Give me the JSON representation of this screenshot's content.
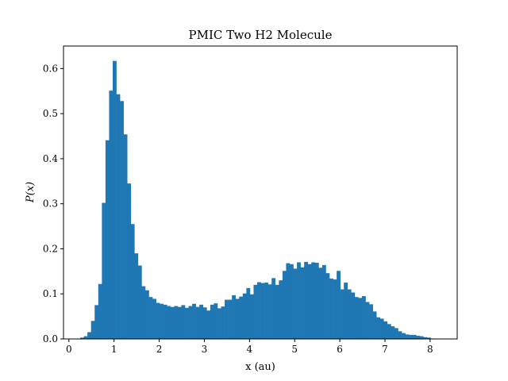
{
  "chart_data": {
    "type": "bar",
    "title": "PMIC Two H2 Molecule",
    "xlabel": "x (au)",
    "ylabel": "P(x)",
    "xlim": [
      -0.12,
      8.6
    ],
    "ylim": [
      0,
      0.65
    ],
    "xticks": [
      0,
      1,
      2,
      3,
      4,
      5,
      6,
      7,
      8
    ],
    "yticks": [
      0.0,
      0.1,
      0.2,
      0.3,
      0.4,
      0.5,
      0.6
    ],
    "ytick_labels": [
      "0.0",
      "0.1",
      "0.2",
      "0.3",
      "0.4",
      "0.5",
      "0.6"
    ],
    "bar_color": "#1f77b4",
    "grid": false,
    "legend": "none",
    "bin_start": 0.25,
    "bin_width": 0.08,
    "values": [
      0.003,
      0.006,
      0.015,
      0.04,
      0.075,
      0.122,
      0.302,
      0.441,
      0.551,
      0.617,
      0.543,
      0.528,
      0.454,
      0.345,
      0.255,
      0.19,
      0.163,
      0.117,
      0.108,
      0.093,
      0.089,
      0.08,
      0.078,
      0.076,
      0.073,
      0.071,
      0.073,
      0.071,
      0.075,
      0.069,
      0.073,
      0.078,
      0.071,
      0.076,
      0.07,
      0.063,
      0.076,
      0.079,
      0.068,
      0.072,
      0.087,
      0.087,
      0.097,
      0.089,
      0.094,
      0.101,
      0.113,
      0.099,
      0.12,
      0.126,
      0.124,
      0.125,
      0.121,
      0.135,
      0.12,
      0.13,
      0.151,
      0.168,
      0.166,
      0.156,
      0.17,
      0.159,
      0.171,
      0.166,
      0.17,
      0.169,
      0.158,
      0.164,
      0.146,
      0.134,
      0.132,
      0.151,
      0.11,
      0.125,
      0.11,
      0.103,
      0.093,
      0.091,
      0.095,
      0.082,
      0.077,
      0.061,
      0.048,
      0.045,
      0.039,
      0.033,
      0.028,
      0.024,
      0.017,
      0.013,
      0.01,
      0.009,
      0.009,
      0.007,
      0.006,
      0.004,
      0.003,
      0.001
    ]
  }
}
